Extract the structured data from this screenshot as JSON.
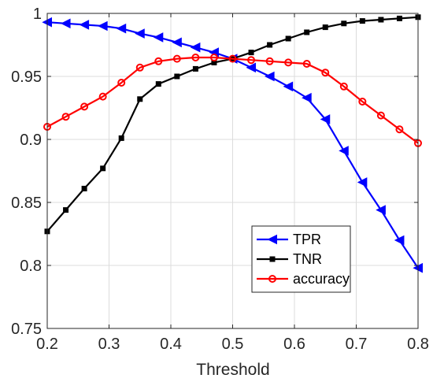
{
  "chart_data": {
    "type": "line",
    "xlabel": "Threshold",
    "ylabel": "",
    "xlim": [
      0.2,
      0.8
    ],
    "ylim": [
      0.75,
      1.0
    ],
    "xticks": [
      "0.2",
      "0.3",
      "0.4",
      "0.5",
      "0.6",
      "0.7",
      "0.8"
    ],
    "yticks": [
      "0.75",
      "0.8",
      "0.85",
      "0.9",
      "0.95",
      "1"
    ],
    "grid": true,
    "legend_position": "bottom-right",
    "x": [
      0.2,
      0.23,
      0.26,
      0.29,
      0.32,
      0.35,
      0.38,
      0.41,
      0.44,
      0.47,
      0.5,
      0.53,
      0.56,
      0.59,
      0.62,
      0.65,
      0.68,
      0.71,
      0.74,
      0.77,
      0.8
    ],
    "series": [
      {
        "name": "TPR",
        "color": "#0000ff",
        "marker": "triangle-left",
        "values": [
          0.993,
          0.992,
          0.991,
          0.99,
          0.988,
          0.984,
          0.981,
          0.977,
          0.973,
          0.969,
          0.964,
          0.957,
          0.95,
          0.942,
          0.933,
          0.916,
          0.891,
          0.866,
          0.844,
          0.82,
          0.798
        ]
      },
      {
        "name": "TNR",
        "color": "#000000",
        "marker": "square",
        "values": [
          0.827,
          0.844,
          0.861,
          0.877,
          0.901,
          0.932,
          0.944,
          0.95,
          0.956,
          0.961,
          0.964,
          0.969,
          0.975,
          0.98,
          0.985,
          0.989,
          0.992,
          0.994,
          0.995,
          0.996,
          0.997
        ]
      },
      {
        "name": "accuracy",
        "color": "#ff0000",
        "marker": "circle",
        "values": [
          0.91,
          0.918,
          0.926,
          0.934,
          0.945,
          0.957,
          0.962,
          0.964,
          0.965,
          0.965,
          0.964,
          0.963,
          0.962,
          0.961,
          0.96,
          0.953,
          0.942,
          0.93,
          0.919,
          0.908,
          0.897
        ]
      }
    ]
  }
}
